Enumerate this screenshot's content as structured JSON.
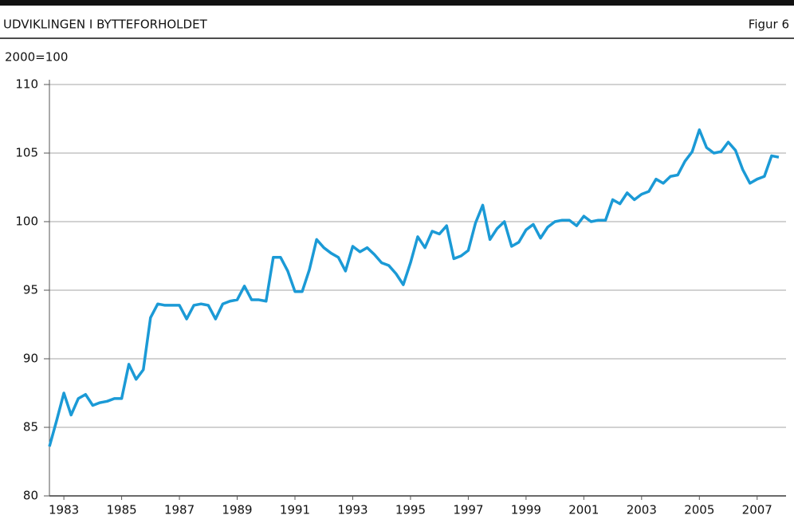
{
  "chart_data": {
    "type": "line",
    "title": "UDVIKLINGEN I BYTTEFORHOLDET",
    "figure_label": "Figur 6",
    "y_axis_label": "2000=100",
    "x": [
      1983,
      1983.25,
      1983.5,
      1983.75,
      1984,
      1984.25,
      1984.5,
      1984.75,
      1985,
      1985.25,
      1985.5,
      1985.75,
      1986,
      1986.25,
      1986.5,
      1986.75,
      1987,
      1987.25,
      1987.5,
      1987.75,
      1988,
      1988.25,
      1988.5,
      1988.75,
      1989,
      1989.25,
      1989.5,
      1989.75,
      1990,
      1990.25,
      1990.5,
      1990.75,
      1991,
      1991.25,
      1991.5,
      1991.75,
      1992,
      1992.25,
      1992.5,
      1992.75,
      1993,
      1993.25,
      1993.5,
      1993.75,
      1994,
      1994.25,
      1994.5,
      1994.75,
      1995,
      1995.25,
      1995.5,
      1995.75,
      1996,
      1996.25,
      1996.5,
      1996.75,
      1997,
      1997.25,
      1997.5,
      1997.75,
      1998,
      1998.25,
      1998.5,
      1998.75,
      1999,
      1999.25,
      1999.5,
      1999.75,
      2000,
      2000.25,
      2000.5,
      2000.75,
      2001,
      2001.25,
      2001.5,
      2001.75,
      2002,
      2002.25,
      2002.5,
      2002.75,
      2003,
      2003.25,
      2003.5,
      2003.75,
      2004,
      2004.25,
      2004.5,
      2004.75,
      2005,
      2005.25,
      2005.5,
      2005.75,
      2006,
      2006.25,
      2006.5,
      2006.75,
      2007,
      2007.25,
      2007.5,
      2007.75,
      2008,
      2008.25
    ],
    "series": [
      {
        "color": "#1b9ad6",
        "values": [
          83.6,
          85.5,
          87.5,
          85.9,
          87.1,
          87.4,
          86.6,
          86.8,
          86.9,
          87.1,
          87.1,
          89.6,
          88.5,
          89.2,
          93.0,
          94.0,
          93.9,
          93.9,
          93.9,
          92.9,
          93.9,
          94.0,
          93.9,
          92.9,
          94.0,
          94.2,
          94.3,
          95.3,
          94.3,
          94.3,
          94.2,
          97.4,
          97.4,
          96.4,
          94.9,
          94.9,
          96.5,
          98.7,
          98.1,
          97.7,
          97.4,
          96.4,
          98.2,
          97.8,
          98.1,
          97.6,
          97.0,
          96.8,
          96.2,
          95.4,
          97.0,
          98.9,
          98.1,
          99.3,
          99.1,
          99.7,
          97.3,
          97.5,
          97.9,
          99.9,
          101.2,
          98.7,
          99.5,
          100.0,
          98.2,
          98.5,
          99.4,
          99.8,
          98.8,
          99.6,
          100.0,
          100.1,
          100.1,
          99.7,
          100.4,
          100.0,
          100.1,
          100.1,
          101.6,
          101.3,
          102.1,
          101.6,
          102.0,
          102.2,
          103.1,
          102.8,
          103.3,
          103.4,
          104.4,
          105.1,
          106.7,
          105.4,
          105.0,
          105.1,
          105.8,
          105.2,
          103.8,
          102.8,
          103.1,
          103.3,
          104.8,
          104.7
        ]
      }
    ],
    "xlim": [
      1983,
      2008.5
    ],
    "xticks": [
      {
        "value": 1983.5,
        "label": "1983"
      },
      {
        "value": 1985.5,
        "label": "1985"
      },
      {
        "value": 1987.5,
        "label": "1987"
      },
      {
        "value": 1989.5,
        "label": "1989"
      },
      {
        "value": 1991.5,
        "label": "1991"
      },
      {
        "value": 1993.5,
        "label": "1993"
      },
      {
        "value": 1995.5,
        "label": "1995"
      },
      {
        "value": 1997.5,
        "label": "1997"
      },
      {
        "value": 1999.5,
        "label": "1999"
      },
      {
        "value": 2001.5,
        "label": "2001"
      },
      {
        "value": 2003.5,
        "label": "2003"
      },
      {
        "value": 2005.5,
        "label": "2005"
      },
      {
        "value": 2007.5,
        "label": "2007"
      }
    ],
    "ylim": [
      80,
      110
    ],
    "yticks": [
      80,
      85,
      90,
      95,
      100,
      105,
      110
    ],
    "grid": true
  }
}
